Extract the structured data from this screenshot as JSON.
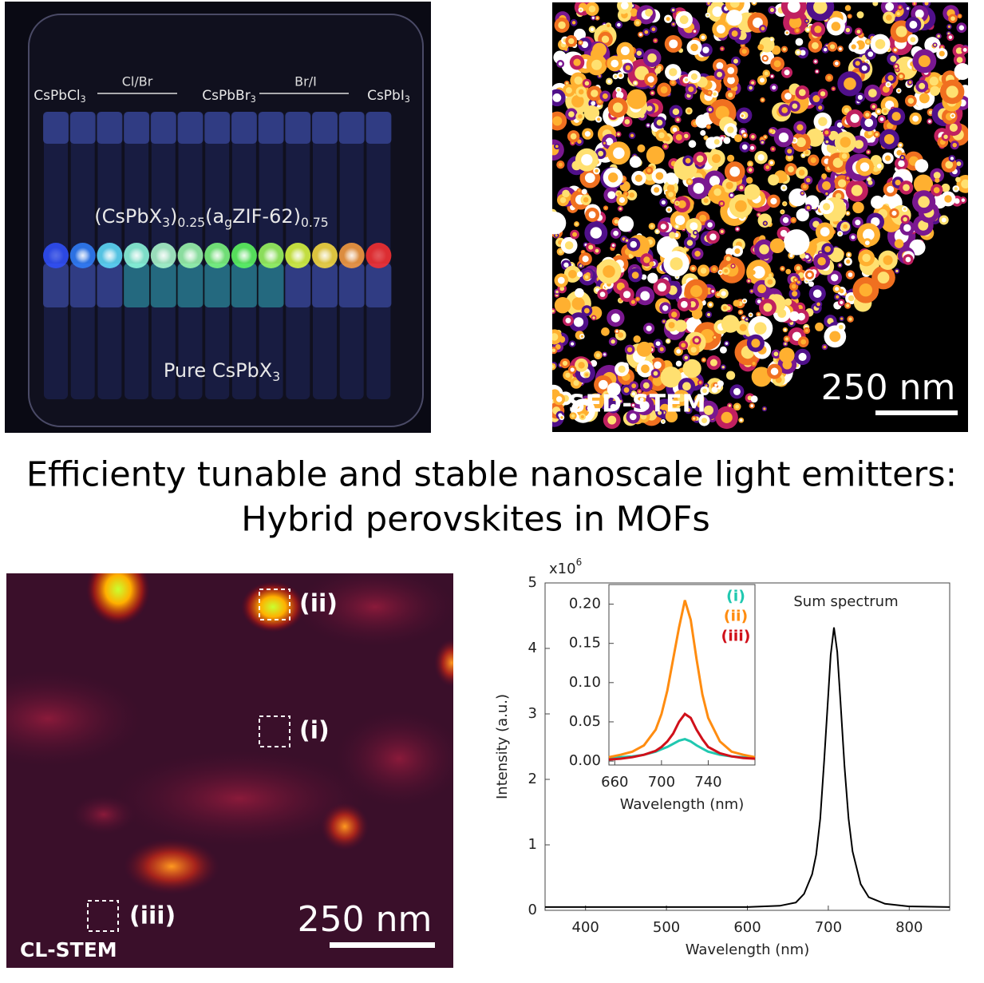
{
  "title": [
    "Efficienty tunable and stable nanoscale light emitters:",
    "Hybrid perovskites in MOFs"
  ],
  "photo": {
    "labels": [
      [
        "CsPbCl",
        "3"
      ],
      [
        "CsPbBr",
        "3"
      ],
      [
        "CsPbI",
        "3"
      ]
    ],
    "ranges": [
      "Cl/Br",
      "Br/I"
    ],
    "formula": [
      "(CsPbX",
      "3",
      ")",
      "0.25",
      "(a",
      "g",
      "ZIF-62)",
      "0.75"
    ],
    "bottom": [
      "Pure CsPbX",
      "3"
    ]
  },
  "sed_stem": {
    "label": "SED-STEM",
    "scale": "250 nm"
  },
  "cl_stem": {
    "label": "CL-STEM",
    "scale": "250 nm",
    "regions": [
      "(ii)",
      "(i)",
      "(iii)"
    ]
  },
  "chart_data": [
    {
      "type": "line",
      "multiplier": [
        "x10",
        "6"
      ],
      "xlabel": "Wavelength (nm)",
      "ylabel": "Intensity (a.u.)",
      "xlim": [
        350,
        850
      ],
      "xticks": [
        400,
        500,
        600,
        700,
        800
      ],
      "ylim": [
        0,
        5
      ],
      "yticks": [
        0,
        1,
        2,
        3,
        4,
        5
      ],
      "x": [
        350,
        400,
        450,
        500,
        550,
        600,
        640,
        660,
        670,
        680,
        685,
        690,
        695,
        700,
        703,
        707,
        711,
        715,
        720,
        725,
        730,
        740,
        750,
        770,
        800,
        850
      ],
      "series": [
        {
          "name": "Sum spectrum",
          "color": "#000000",
          "values": [
            0.05,
            0.05,
            0.05,
            0.05,
            0.05,
            0.05,
            0.07,
            0.12,
            0.25,
            0.55,
            0.85,
            1.4,
            2.3,
            3.3,
            3.9,
            4.32,
            3.95,
            3.2,
            2.2,
            1.4,
            0.9,
            0.4,
            0.2,
            0.1,
            0.06,
            0.05
          ]
        }
      ]
    },
    {
      "type": "line",
      "xlabel": "Wavelength (nm)",
      "xlim": [
        655,
        780
      ],
      "xticks": [
        660,
        700,
        740
      ],
      "ylim": [
        -0.005,
        0.225
      ],
      "yticks": [
        {
          "value": 0,
          "label": "0.00"
        },
        {
          "value": 0.05,
          "label": "0.05"
        },
        {
          "value": 0.1,
          "label": "0.10"
        },
        {
          "value": 0.15,
          "label": "0.15"
        },
        {
          "value": 0.2,
          "label": "0.20"
        }
      ],
      "x": [
        655,
        665,
        675,
        685,
        695,
        700,
        705,
        710,
        715,
        720,
        725,
        730,
        735,
        740,
        750,
        760,
        770,
        780
      ],
      "series": [
        {
          "name": "(i)",
          "color": "#20c8b0",
          "values": [
            0.004,
            0.005,
            0.006,
            0.008,
            0.012,
            0.015,
            0.018,
            0.022,
            0.026,
            0.028,
            0.025,
            0.02,
            0.016,
            0.012,
            0.008,
            0.006,
            0.005,
            0.004
          ]
        },
        {
          "name": "(ii)",
          "color": "#ff8c10",
          "values": [
            0.005,
            0.008,
            0.012,
            0.02,
            0.04,
            0.06,
            0.09,
            0.13,
            0.17,
            0.205,
            0.18,
            0.13,
            0.085,
            0.055,
            0.025,
            0.012,
            0.008,
            0.005
          ]
        },
        {
          "name": "(iii)",
          "color": "#d0101a",
          "values": [
            0.002,
            0.003,
            0.005,
            0.008,
            0.013,
            0.018,
            0.025,
            0.035,
            0.05,
            0.06,
            0.055,
            0.04,
            0.028,
            0.018,
            0.01,
            0.006,
            0.004,
            0.003
          ]
        }
      ]
    }
  ]
}
